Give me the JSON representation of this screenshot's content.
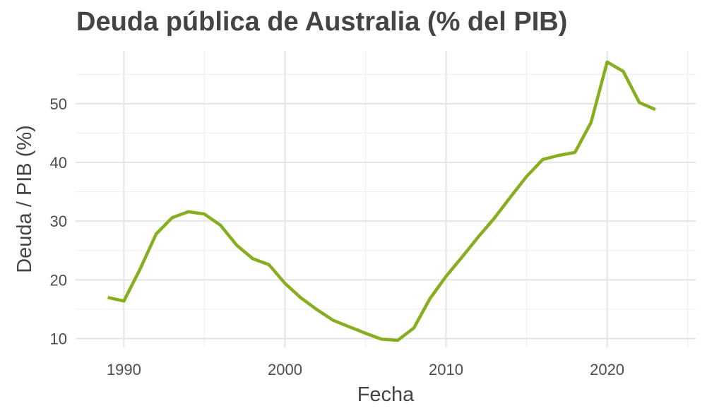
{
  "chart_data": {
    "type": "line",
    "title": "Deuda pública de Australia (% del PIB)",
    "xlabel": "Fecha",
    "ylabel": "Deuda / PIB (%)",
    "xlim": [
      1987.0,
      2025.5
    ],
    "ylim": [
      8.5,
      59
    ],
    "xticks": [
      1990,
      2000,
      2010,
      2020
    ],
    "yticks": [
      10,
      20,
      30,
      40,
      50
    ],
    "grid": true,
    "line_color": "#86ae1e",
    "series": [
      {
        "x": [
          1989,
          1990,
          1991,
          1992,
          1993,
          1994,
          1995,
          1996,
          1997,
          1998,
          1999,
          2000,
          2001,
          2002,
          2003,
          2004,
          2005,
          2006,
          2007,
          2008,
          2009,
          2010,
          2011,
          2012,
          2013,
          2014,
          2015,
          2016,
          2017,
          2018,
          2019,
          2020,
          2021,
          2022,
          2023
        ],
        "y": [
          17.0,
          16.4,
          21.8,
          27.8,
          30.6,
          31.6,
          31.2,
          29.3,
          25.9,
          23.6,
          22.6,
          19.4,
          16.9,
          14.9,
          13.1,
          12.0,
          10.9,
          9.9,
          9.7,
          11.8,
          16.8,
          20.6,
          23.9,
          27.3,
          30.5,
          34.1,
          37.6,
          40.5,
          41.2,
          41.7,
          46.8,
          57.1,
          55.5,
          50.2,
          49.0
        ]
      }
    ]
  }
}
